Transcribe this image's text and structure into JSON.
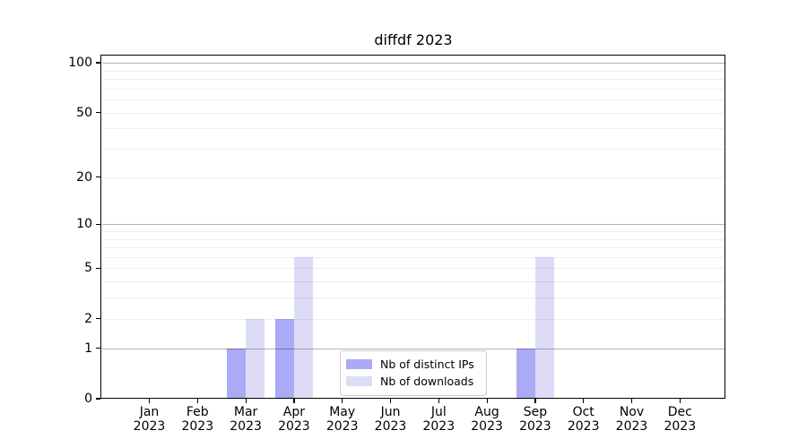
{
  "chart_data": {
    "type": "bar",
    "title": "diffdf 2023",
    "xlabel": "",
    "ylabel": "",
    "scale": "log10(1+x)",
    "ylim": [
      0,
      110
    ],
    "grid": "horizontal",
    "categories": [
      "Jan",
      "Feb",
      "Mar",
      "Apr",
      "May",
      "Jun",
      "Jul",
      "Aug",
      "Sep",
      "Oct",
      "Nov",
      "Dec"
    ],
    "category_year": "2023",
    "yticks": [
      "0",
      "1",
      "2",
      "5",
      "10",
      "20",
      "50",
      "100"
    ],
    "ytick_values": [
      0,
      1,
      2,
      5,
      10,
      20,
      50,
      100
    ],
    "major_grid_values": [
      1,
      10,
      100
    ],
    "minor_grid_values": [
      2,
      3,
      4,
      5,
      6,
      7,
      8,
      9,
      20,
      30,
      40,
      50,
      60,
      70,
      80,
      90
    ],
    "series": [
      {
        "name": "Nb of distinct IPs",
        "key": "distinct-ips",
        "color": "#aaaaf7",
        "values": [
          0,
          0,
          1,
          2,
          0,
          0,
          0,
          0,
          1,
          0,
          0,
          0
        ]
      },
      {
        "name": "Nb of downloads",
        "key": "downloads",
        "color": "#dcdcf7",
        "values": [
          0,
          0,
          2,
          6,
          0,
          0,
          0,
          0,
          6,
          0,
          0,
          0
        ]
      }
    ],
    "legend_position": "lower center"
  }
}
